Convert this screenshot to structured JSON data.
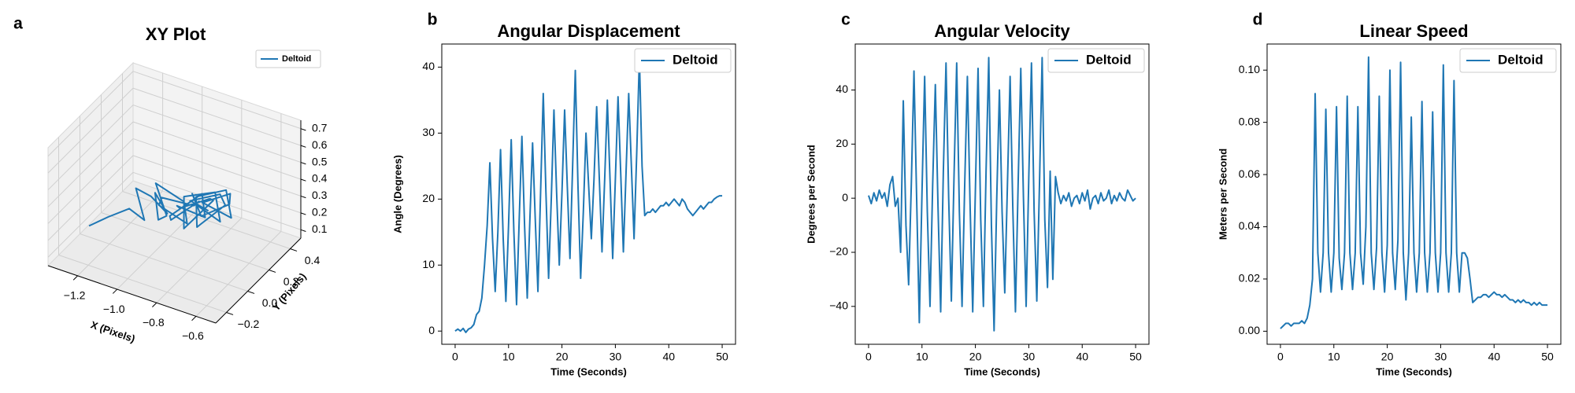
{
  "chart_data": [
    {
      "type": "line3d",
      "panel_label": "a",
      "title": "XY Plot",
      "xlabel": "X (Pixels)",
      "ylabel": "Y (Pixels)",
      "legend": "upper right",
      "series": [
        {
          "name": "Deltoid",
          "color": "#1f77b4",
          "x": [
            -1.25,
            -1.18,
            -1.1,
            -1.05,
            -1.12,
            -1.0,
            -0.95,
            -1.05,
            -0.98,
            -0.9,
            -1.02,
            -0.92,
            -0.85,
            -0.95,
            -1.0,
            -0.88,
            -0.8,
            -0.9,
            -0.97,
            -0.85,
            -0.78,
            -0.88,
            -0.93,
            -0.82,
            -0.75,
            -0.85,
            -0.92,
            -0.8,
            -0.72,
            -0.82,
            -0.9,
            -0.78,
            -0.7,
            -0.8,
            -0.88,
            -0.76,
            -0.68,
            -0.78,
            -0.86,
            -0.75,
            -0.7,
            -0.8,
            -0.9,
            -0.85,
            -0.78
          ],
          "y": [
            -0.1,
            -0.05,
            0,
            0.05,
            0.1,
            0.02,
            0.08,
            0.15,
            0.05,
            -0.02,
            0.1,
            0.18,
            0.08,
            0,
            0.12,
            0.2,
            0.1,
            0.02,
            0.14,
            0.22,
            0.12,
            0.04,
            0.16,
            0.24,
            0.14,
            0.05,
            0.18,
            0.25,
            0.15,
            0.06,
            0.2,
            0.26,
            0.16,
            0.08,
            0.22,
            0.28,
            0.18,
            0.1,
            0.24,
            0.3,
            0.2,
            0.12,
            0.22,
            0.18,
            0.15
          ],
          "z": [
            0.2,
            0.25,
            0.3,
            0.22,
            0.35,
            0.4,
            0.28,
            0.32,
            0.25,
            0.35,
            0.42,
            0.3,
            0.26,
            0.38,
            0.33,
            0.28,
            0.4,
            0.3,
            0.22,
            0.35,
            0.3,
            0.38,
            0.27,
            0.32,
            0.4,
            0.25,
            0.33,
            0.36,
            0.28,
            0.42,
            0.3,
            0.35,
            0.38,
            0.26,
            0.32,
            0.37,
            0.3,
            0.4,
            0.28,
            0.34,
            0.36,
            0.3,
            0.33,
            0.31,
            0.32
          ]
        }
      ],
      "xlim": [
        -1.35,
        -0.5
      ],
      "ylim": [
        -0.3,
        0.5
      ],
      "zlim": [
        0.05,
        0.75
      ],
      "xticks": [
        {
          "value": -1.2,
          "label": "−1.2"
        },
        {
          "value": -1.0,
          "label": "−1.0"
        },
        {
          "value": -0.8,
          "label": "−0.8"
        },
        {
          "value": -0.6,
          "label": "−0.6"
        }
      ],
      "yticks": [
        {
          "value": -0.2,
          "label": "−0.2"
        },
        {
          "value": 0,
          "label": "0.0"
        },
        0.2,
        0.4
      ],
      "zticks": [
        0.1,
        0.2,
        0.3,
        0.4,
        0.5,
        0.6,
        0.7
      ]
    },
    {
      "type": "line",
      "panel_label": "b",
      "title": "Angular Displacement",
      "xlabel": "Time (Seconds)",
      "ylabel": "Angle (Degrees)",
      "legend": "upper right",
      "x": [
        0,
        0.5,
        1,
        1.5,
        2,
        2.5,
        3,
        3.5,
        4,
        4.5,
        5,
        5.5,
        6,
        6.5,
        7,
        7.5,
        8,
        8.5,
        9,
        9.5,
        10,
        10.5,
        11,
        11.5,
        12,
        12.5,
        13,
        13.5,
        14,
        14.5,
        15,
        15.5,
        16,
        16.5,
        17,
        17.5,
        18,
        18.5,
        19,
        19.5,
        20,
        20.5,
        21,
        21.5,
        22,
        22.5,
        23,
        23.5,
        24,
        24.5,
        25,
        25.5,
        26,
        26.5,
        27,
        27.5,
        28,
        28.5,
        29,
        29.5,
        30,
        30.5,
        31,
        31.5,
        32,
        32.5,
        33,
        33.5,
        34,
        34.5,
        35,
        35.5,
        36,
        36.5,
        37,
        37.5,
        38,
        38.5,
        39,
        39.5,
        40,
        40.5,
        41,
        41.5,
        42,
        42.5,
        43,
        43.5,
        44,
        44.5,
        45,
        45.5,
        46,
        46.5,
        47,
        47.5,
        48,
        48.5,
        49,
        49.5,
        50
      ],
      "series": [
        {
          "name": "Deltoid",
          "color": "#1f77b4",
          "values": [
            0,
            0.3,
            0,
            0.4,
            -0.2,
            0.3,
            0.5,
            1,
            2.5,
            3,
            5,
            10,
            16,
            25.5,
            14,
            6,
            15,
            27.5,
            14,
            4.5,
            16,
            29,
            15,
            4,
            17,
            29.5,
            16,
            5,
            17,
            28.5,
            17,
            6,
            21,
            36,
            21,
            8,
            20,
            33.5,
            21,
            10,
            21,
            33.5,
            22,
            11,
            25,
            39.5,
            22,
            8,
            18,
            30,
            22,
            14,
            23,
            34,
            23,
            12,
            23,
            35,
            23,
            11,
            23,
            35.5,
            24,
            12,
            24,
            36,
            25,
            14,
            27,
            41.5,
            25,
            17.5,
            18,
            18,
            18.5,
            18,
            18.5,
            19,
            19,
            19.5,
            19,
            19.5,
            20,
            19.5,
            19,
            20,
            19.5,
            18.5,
            18,
            17.5,
            18,
            18.5,
            19,
            18.5,
            19,
            19.5,
            19.5,
            20,
            20.3,
            20.5,
            20.5
          ]
        }
      ],
      "xlim": [
        -2.5,
        52.5
      ],
      "ylim": [
        -2,
        43.5
      ],
      "xticks": [
        0,
        10,
        20,
        30,
        40,
        50
      ],
      "yticks": [
        0,
        10,
        20,
        30,
        40
      ]
    },
    {
      "type": "line",
      "panel_label": "c",
      "title": "Angular Velocity",
      "xlabel": "Time (Seconds)",
      "ylabel": "Degrees per Second",
      "legend": "upper right",
      "x": [
        0,
        0.5,
        1,
        1.5,
        2,
        2.5,
        3,
        3.5,
        4,
        4.5,
        5,
        5.5,
        6,
        6.5,
        7,
        7.5,
        8,
        8.5,
        9,
        9.5,
        10,
        10.5,
        11,
        11.5,
        12,
        12.5,
        13,
        13.5,
        14,
        14.5,
        15,
        15.5,
        16,
        16.5,
        17,
        17.5,
        18,
        18.5,
        19,
        19.5,
        20,
        20.5,
        21,
        21.5,
        22,
        22.5,
        23,
        23.5,
        24,
        24.5,
        25,
        25.5,
        26,
        26.5,
        27,
        27.5,
        28,
        28.5,
        29,
        29.5,
        30,
        30.5,
        31,
        31.5,
        32,
        32.5,
        33,
        33.5,
        34,
        34.5,
        35,
        35.5,
        36,
        36.5,
        37,
        37.5,
        38,
        38.5,
        39,
        39.5,
        40,
        40.5,
        41,
        41.5,
        42,
        42.5,
        43,
        43.5,
        44,
        44.5,
        45,
        45.5,
        46,
        46.5,
        47,
        47.5,
        48,
        48.5,
        49,
        49.5,
        50
      ],
      "series": [
        {
          "name": "Deltoid",
          "color": "#1f77b4",
          "values": [
            1,
            -2,
            2,
            -1,
            3,
            0,
            2,
            -3,
            5,
            8,
            -3,
            0,
            -20,
            36,
            -10,
            -32,
            5,
            47,
            0,
            -46,
            2,
            45,
            -5,
            -40,
            5,
            42,
            -3,
            -42,
            10,
            50,
            0,
            -38,
            8,
            50,
            -5,
            -40,
            5,
            45,
            -2,
            -42,
            3,
            48,
            -8,
            -40,
            10,
            52,
            -10,
            -49,
            0,
            40,
            -5,
            -35,
            5,
            45,
            -3,
            -42,
            5,
            48,
            0,
            -40,
            8,
            50,
            -5,
            -38,
            5,
            52,
            -8,
            -33,
            10,
            -30,
            8,
            2,
            -2,
            1,
            -1,
            2,
            -3,
            0,
            1,
            -2,
            2,
            -1,
            3,
            -4,
            0,
            1,
            -2,
            2,
            -1,
            0,
            3,
            -2,
            1,
            -1,
            2,
            0,
            -1,
            3,
            1,
            -1,
            0
          ]
        }
      ],
      "xlim": [
        -2.5,
        52.5
      ],
      "ylim": [
        -54,
        57
      ],
      "xticks": [
        0,
        10,
        20,
        30,
        40,
        50
      ],
      "yticks": [
        {
          "value": -40,
          "label": "−40"
        },
        {
          "value": -20,
          "label": "−20"
        },
        0,
        20,
        40
      ]
    },
    {
      "type": "line",
      "panel_label": "d",
      "title": "Linear Speed",
      "xlabel": "Time (Seconds)",
      "ylabel": "Meters per Second",
      "legend": "upper right",
      "x": [
        0,
        0.5,
        1,
        1.5,
        2,
        2.5,
        3,
        3.5,
        4,
        4.5,
        5,
        5.5,
        6,
        6.5,
        7,
        7.5,
        8,
        8.5,
        9,
        9.5,
        10,
        10.5,
        11,
        11.5,
        12,
        12.5,
        13,
        13.5,
        14,
        14.5,
        15,
        15.5,
        16,
        16.5,
        17,
        17.5,
        18,
        18.5,
        19,
        19.5,
        20,
        20.5,
        21,
        21.5,
        22,
        22.5,
        23,
        23.5,
        24,
        24.5,
        25,
        25.5,
        26,
        26.5,
        27,
        27.5,
        28,
        28.5,
        29,
        29.5,
        30,
        30.5,
        31,
        31.5,
        32,
        32.5,
        33,
        33.5,
        34,
        34.5,
        35,
        35.5,
        36,
        36.5,
        37,
        37.5,
        38,
        38.5,
        39,
        39.5,
        40,
        40.5,
        41,
        41.5,
        42,
        42.5,
        43,
        43.5,
        44,
        44.5,
        45,
        45.5,
        46,
        46.5,
        47,
        47.5,
        48,
        48.5,
        49,
        49.5,
        50
      ],
      "series": [
        {
          "name": "Deltoid",
          "color": "#1f77b4",
          "values": [
            0.001,
            0.002,
            0.003,
            0.003,
            0.002,
            0.003,
            0.003,
            0.003,
            0.004,
            0.003,
            0.005,
            0.01,
            0.02,
            0.091,
            0.03,
            0.015,
            0.03,
            0.085,
            0.03,
            0.015,
            0.03,
            0.086,
            0.028,
            0.016,
            0.03,
            0.09,
            0.03,
            0.016,
            0.03,
            0.086,
            0.03,
            0.018,
            0.04,
            0.105,
            0.03,
            0.016,
            0.032,
            0.09,
            0.03,
            0.015,
            0.033,
            0.1,
            0.03,
            0.016,
            0.035,
            0.103,
            0.03,
            0.012,
            0.03,
            0.082,
            0.03,
            0.015,
            0.03,
            0.088,
            0.03,
            0.015,
            0.03,
            0.084,
            0.03,
            0.015,
            0.03,
            0.102,
            0.03,
            0.015,
            0.03,
            0.096,
            0.03,
            0.015,
            0.03,
            0.03,
            0.028,
            0.02,
            0.011,
            0.012,
            0.013,
            0.013,
            0.014,
            0.014,
            0.013,
            0.014,
            0.015,
            0.014,
            0.014,
            0.013,
            0.014,
            0.013,
            0.012,
            0.012,
            0.011,
            0.012,
            0.011,
            0.012,
            0.011,
            0.011,
            0.01,
            0.011,
            0.01,
            0.011,
            0.01,
            0.01,
            0.01
          ]
        }
      ],
      "xlim": [
        -2.5,
        52.5
      ],
      "ylim": [
        -0.005,
        0.11
      ],
      "xticks": [
        0,
        10,
        20,
        30,
        40,
        50
      ],
      "yticks": [
        {
          "value": 0,
          "label": "0.00"
        },
        {
          "value": 0.02,
          "label": "0.02"
        },
        {
          "value": 0.04,
          "label": "0.04"
        },
        {
          "value": 0.06,
          "label": "0.06"
        },
        {
          "value": 0.08,
          "label": "0.08"
        },
        {
          "value": 0.1,
          "label": "0.10"
        }
      ]
    }
  ]
}
